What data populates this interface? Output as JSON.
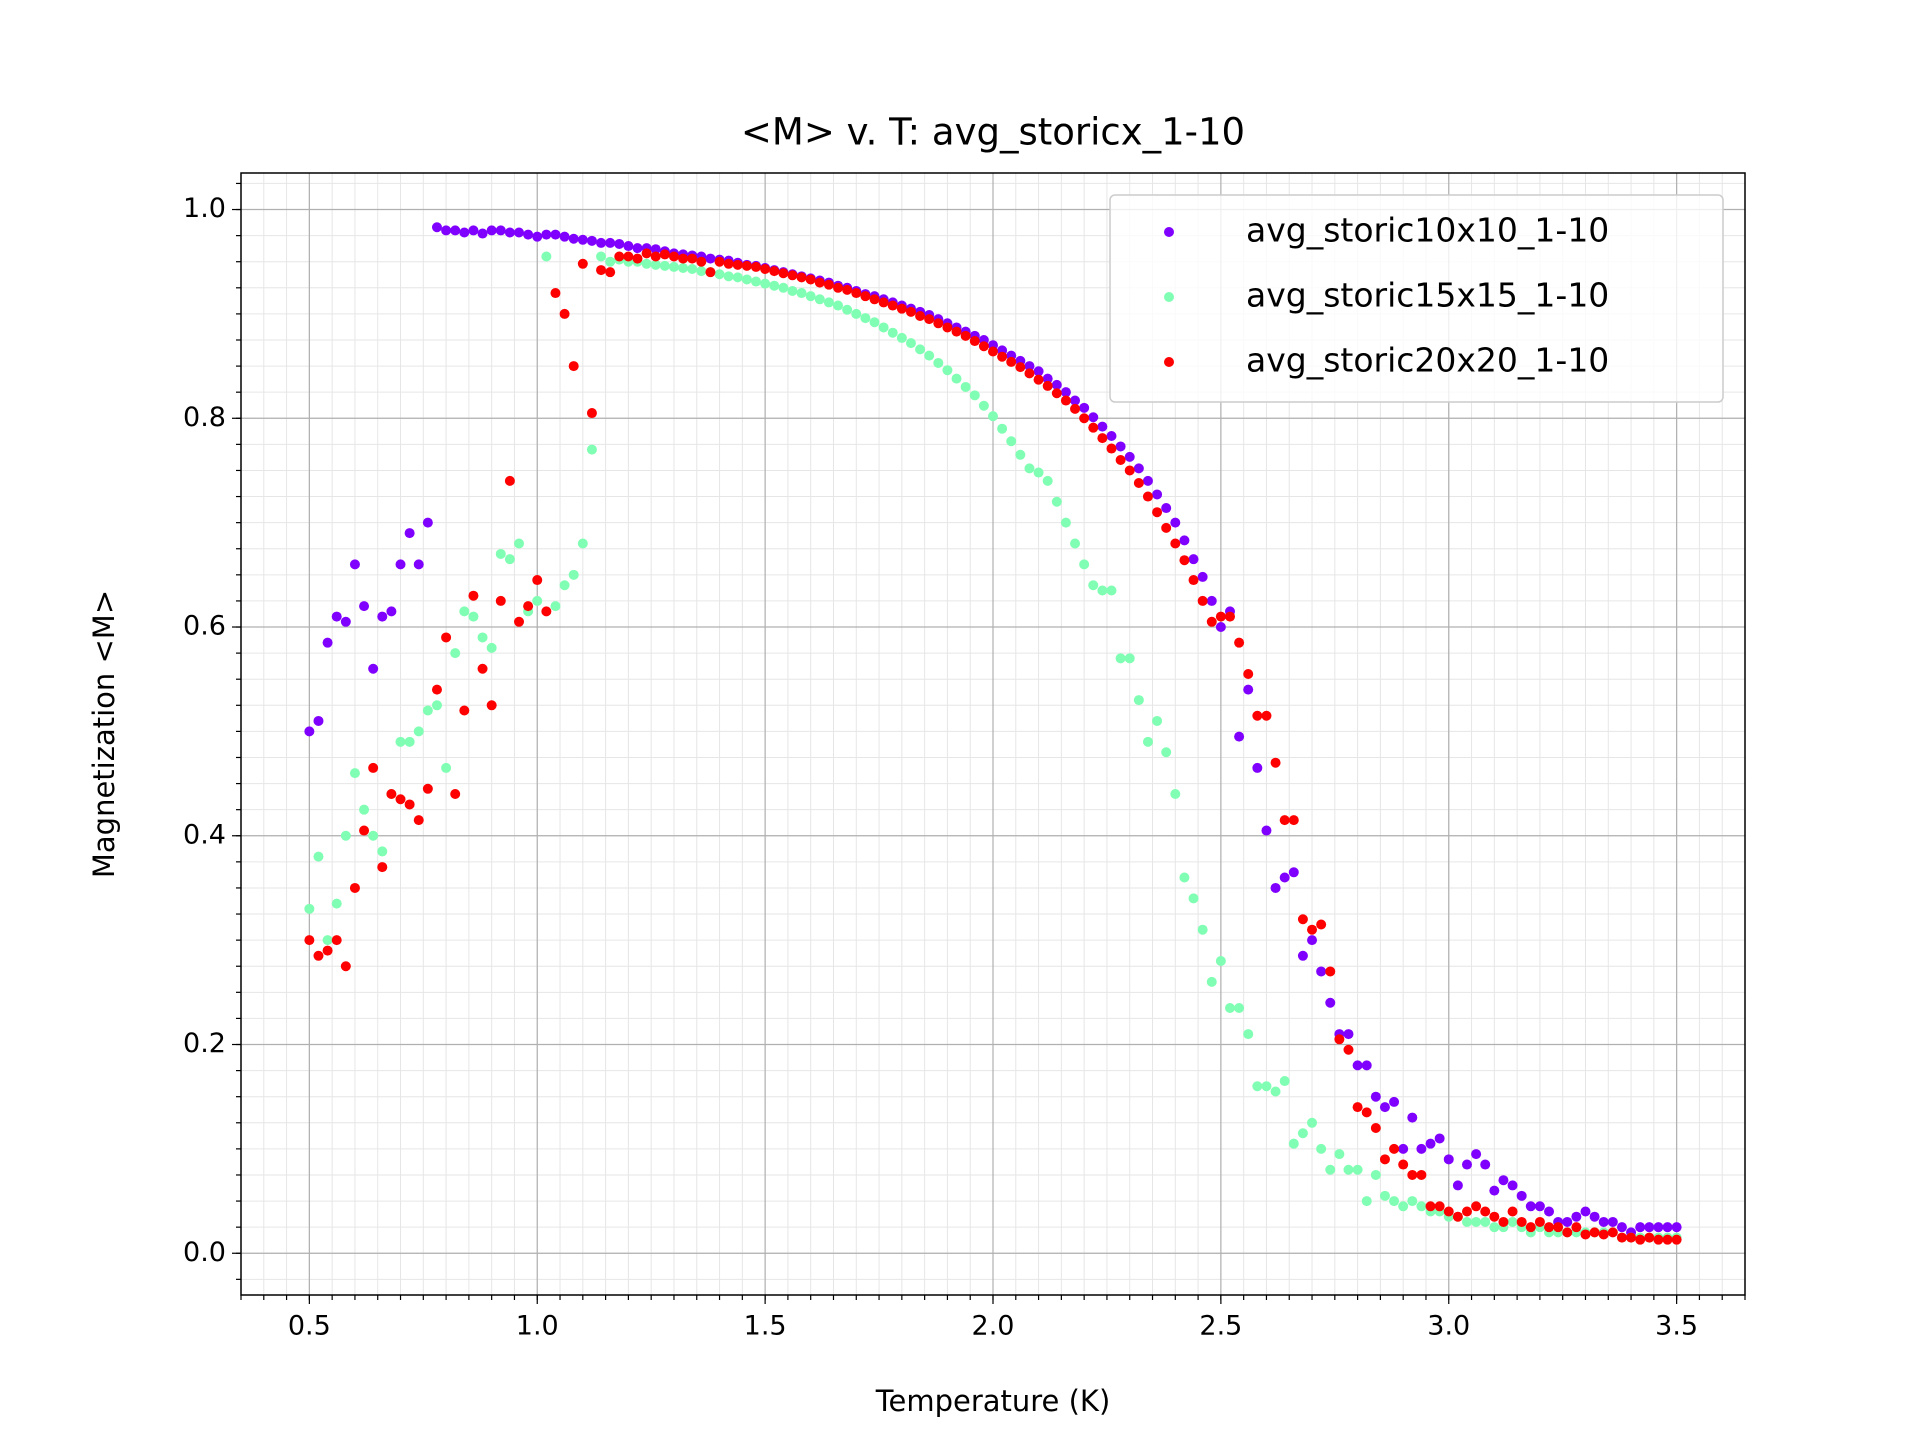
{
  "chart_data": {
    "type": "scatter",
    "title": "<M> v. T: avg_storicx_1-10",
    "xlabel": "Temperature (K)",
    "ylabel": "Magnetization <M>",
    "x": [
      0.5,
      0.52,
      0.54,
      0.56,
      0.58,
      0.6,
      0.62,
      0.64,
      0.66,
      0.68,
      0.7,
      0.72,
      0.74,
      0.76,
      0.78,
      0.8,
      0.82,
      0.84,
      0.86,
      0.88,
      0.9,
      0.92,
      0.94,
      0.96,
      0.98,
      1.0,
      1.02,
      1.04,
      1.06,
      1.08,
      1.1,
      1.12,
      1.14,
      1.16,
      1.18,
      1.2,
      1.22,
      1.24,
      1.26,
      1.28,
      1.3,
      1.32,
      1.34,
      1.36,
      1.38,
      1.4,
      1.42,
      1.44,
      1.46,
      1.48,
      1.5,
      1.52,
      1.54,
      1.56,
      1.58,
      1.6,
      1.62,
      1.64,
      1.66,
      1.68,
      1.7,
      1.72,
      1.74,
      1.76,
      1.78,
      1.8,
      1.82,
      1.84,
      1.86,
      1.88,
      1.9,
      1.92,
      1.94,
      1.96,
      1.98,
      2.0,
      2.02,
      2.04,
      2.06,
      2.08,
      2.1,
      2.12,
      2.14,
      2.16,
      2.18,
      2.2,
      2.22,
      2.24,
      2.26,
      2.28,
      2.3,
      2.32,
      2.34,
      2.36,
      2.38,
      2.4,
      2.42,
      2.44,
      2.46,
      2.48,
      2.5,
      2.52,
      2.54,
      2.56,
      2.58,
      2.6,
      2.62,
      2.64,
      2.66,
      2.68,
      2.7,
      2.72,
      2.74,
      2.76,
      2.78,
      2.8,
      2.82,
      2.84,
      2.86,
      2.88,
      2.9,
      2.92,
      2.94,
      2.96,
      2.98,
      3.0,
      3.02,
      3.04,
      3.06,
      3.08,
      3.1,
      3.12,
      3.14,
      3.16,
      3.18,
      3.2,
      3.22,
      3.24,
      3.26,
      3.28,
      3.3,
      3.32,
      3.34,
      3.36,
      3.38,
      3.4,
      3.42,
      3.44,
      3.46,
      3.48,
      3.5
    ],
    "series": [
      {
        "name": "avg_storic10x10_1-10",
        "color": "#8000ff",
        "values": [
          0.5,
          0.51,
          0.585,
          0.61,
          0.605,
          0.66,
          0.62,
          0.56,
          0.61,
          0.615,
          0.66,
          0.69,
          0.66,
          0.7,
          0.983,
          0.98,
          0.98,
          0.978,
          0.98,
          0.977,
          0.98,
          0.98,
          0.978,
          0.978,
          0.976,
          0.974,
          0.976,
          0.976,
          0.974,
          0.972,
          0.971,
          0.97,
          0.968,
          0.968,
          0.967,
          0.965,
          0.963,
          0.963,
          0.962,
          0.96,
          0.958,
          0.957,
          0.956,
          0.955,
          0.953,
          0.952,
          0.951,
          0.949,
          0.947,
          0.946,
          0.944,
          0.942,
          0.94,
          0.938,
          0.936,
          0.934,
          0.932,
          0.93,
          0.927,
          0.925,
          0.922,
          0.919,
          0.917,
          0.914,
          0.911,
          0.908,
          0.905,
          0.902,
          0.899,
          0.895,
          0.891,
          0.887,
          0.883,
          0.879,
          0.875,
          0.87,
          0.865,
          0.86,
          0.855,
          0.85,
          0.845,
          0.838,
          0.832,
          0.825,
          0.817,
          0.81,
          0.801,
          0.792,
          0.783,
          0.773,
          0.763,
          0.752,
          0.74,
          0.727,
          0.714,
          0.7,
          0.683,
          0.665,
          0.648,
          0.625,
          0.6,
          0.615,
          0.495,
          0.54,
          0.465,
          0.405,
          0.35,
          0.36,
          0.365,
          0.285,
          0.3,
          0.27,
          0.24,
          0.21,
          0.21,
          0.18,
          0.18,
          0.15,
          0.14,
          0.145,
          0.1,
          0.13,
          0.1,
          0.105,
          0.11,
          0.09,
          0.065,
          0.085,
          0.095,
          0.085,
          0.06,
          0.07,
          0.065,
          0.055,
          0.045,
          0.045,
          0.04,
          0.03,
          0.03,
          0.035,
          0.04,
          0.035,
          0.03,
          0.03,
          0.025,
          0.02,
          0.025,
          0.025,
          0.025,
          0.025,
          0.025
        ]
      },
      {
        "name": "avg_storic15x15_1-10",
        "color": "#80feb3",
        "values": [
          0.33,
          0.38,
          0.3,
          0.335,
          0.4,
          0.46,
          0.425,
          0.4,
          0.385,
          0.44,
          0.49,
          0.49,
          0.5,
          0.52,
          0.525,
          0.465,
          0.575,
          0.615,
          0.61,
          0.59,
          0.58,
          0.67,
          0.665,
          0.68,
          0.615,
          0.625,
          0.955,
          0.62,
          0.64,
          0.65,
          0.68,
          0.77,
          0.955,
          0.95,
          0.952,
          0.95,
          0.95,
          0.948,
          0.947,
          0.946,
          0.945,
          0.944,
          0.943,
          0.941,
          0.94,
          0.938,
          0.936,
          0.935,
          0.933,
          0.931,
          0.929,
          0.927,
          0.925,
          0.922,
          0.92,
          0.917,
          0.914,
          0.911,
          0.908,
          0.904,
          0.9,
          0.896,
          0.892,
          0.887,
          0.882,
          0.877,
          0.872,
          0.866,
          0.86,
          0.853,
          0.846,
          0.838,
          0.83,
          0.822,
          0.812,
          0.802,
          0.79,
          0.778,
          0.765,
          0.752,
          0.748,
          0.74,
          0.72,
          0.7,
          0.68,
          0.66,
          0.64,
          0.635,
          0.635,
          0.57,
          0.57,
          0.53,
          0.49,
          0.51,
          0.48,
          0.44,
          0.36,
          0.34,
          0.31,
          0.26,
          0.28,
          0.235,
          0.235,
          0.21,
          0.16,
          0.16,
          0.155,
          0.165,
          0.105,
          0.115,
          0.125,
          0.1,
          0.08,
          0.095,
          0.08,
          0.08,
          0.05,
          0.075,
          0.055,
          0.05,
          0.045,
          0.05,
          0.045,
          0.04,
          0.04,
          0.035,
          0.035,
          0.03,
          0.03,
          0.03,
          0.025,
          0.025,
          0.03,
          0.025,
          0.02,
          0.025,
          0.02,
          0.02,
          0.02,
          0.02,
          0.02,
          0.02,
          0.02,
          0.02,
          0.015,
          0.015,
          0.015,
          0.015,
          0.015,
          0.015,
          0.015
        ]
      },
      {
        "name": "avg_storic20x20_1-10",
        "color": "#ff0000",
        "values": [
          0.3,
          0.285,
          0.29,
          0.3,
          0.275,
          0.35,
          0.405,
          0.465,
          0.37,
          0.44,
          0.435,
          0.43,
          0.415,
          0.445,
          0.54,
          0.59,
          0.44,
          0.52,
          0.63,
          0.56,
          0.525,
          0.625,
          0.74,
          0.605,
          0.62,
          0.645,
          0.615,
          0.92,
          0.9,
          0.85,
          0.948,
          0.805,
          0.942,
          0.94,
          0.955,
          0.955,
          0.953,
          0.958,
          0.955,
          0.957,
          0.955,
          0.953,
          0.953,
          0.95,
          0.94,
          0.95,
          0.948,
          0.947,
          0.946,
          0.945,
          0.943,
          0.941,
          0.939,
          0.937,
          0.935,
          0.933,
          0.93,
          0.928,
          0.925,
          0.923,
          0.92,
          0.917,
          0.914,
          0.911,
          0.908,
          0.905,
          0.902,
          0.898,
          0.895,
          0.891,
          0.887,
          0.883,
          0.879,
          0.874,
          0.869,
          0.864,
          0.859,
          0.854,
          0.849,
          0.843,
          0.837,
          0.831,
          0.824,
          0.817,
          0.809,
          0.8,
          0.791,
          0.781,
          0.771,
          0.76,
          0.75,
          0.738,
          0.725,
          0.71,
          0.695,
          0.68,
          0.664,
          0.645,
          0.625,
          0.605,
          0.61,
          0.61,
          0.585,
          0.555,
          0.515,
          0.515,
          0.47,
          0.415,
          0.415,
          0.32,
          0.31,
          0.315,
          0.27,
          0.205,
          0.195,
          0.14,
          0.135,
          0.12,
          0.09,
          0.1,
          0.085,
          0.075,
          0.075,
          0.045,
          0.045,
          0.04,
          0.035,
          0.04,
          0.045,
          0.04,
          0.035,
          0.03,
          0.04,
          0.03,
          0.025,
          0.03,
          0.025,
          0.025,
          0.02,
          0.025,
          0.018,
          0.02,
          0.018,
          0.02,
          0.015,
          0.015,
          0.013,
          0.015,
          0.013,
          0.013,
          0.013
        ]
      }
    ],
    "xlim": [
      0.35,
      3.65
    ],
    "ylim": [
      -0.04,
      1.035
    ],
    "xticks": [
      0.5,
      {
        "value": 1,
        "label": "1.0"
      },
      1.5,
      {
        "value": 2,
        "label": "2.0"
      },
      2.5,
      {
        "value": 3,
        "label": "3.0"
      },
      3.5
    ],
    "yticks": [
      {
        "value": 0,
        "label": "0.0"
      },
      0.2,
      0.4,
      0.6,
      0.8,
      {
        "value": 1,
        "label": "1.0"
      }
    ],
    "grid": true,
    "minor_divisions": {
      "x": 10,
      "y": 8
    },
    "legend": "upper right"
  }
}
